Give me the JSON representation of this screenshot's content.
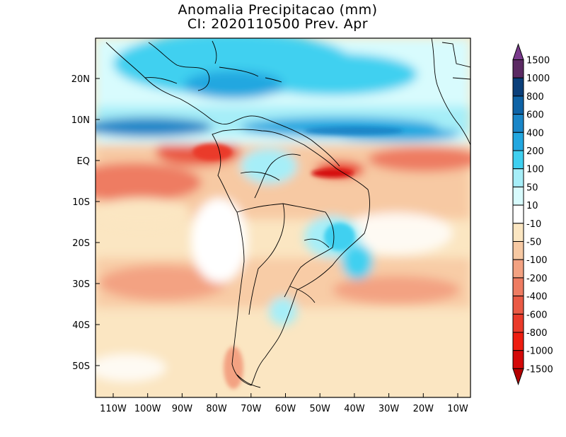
{
  "title": "Anomalia Precipitacao (mm)",
  "subtitle": "CI: 2020110500 Prev. Apr",
  "axes": {
    "lat_labels": [
      "20N",
      "10N",
      "EQ",
      "10S",
      "20S",
      "30S",
      "40S",
      "50S"
    ],
    "lon_labels": [
      "110W",
      "100W",
      "90W",
      "80W",
      "70W",
      "60W",
      "50W",
      "40W",
      "30W",
      "20W",
      "10W"
    ]
  },
  "colorbar": {
    "levels": [
      "1500",
      "1000",
      "800",
      "600",
      "400",
      "200",
      "100",
      "50",
      "10",
      "-10",
      "-50",
      "-100",
      "-200",
      "-400",
      "-600",
      "-800",
      "-1000",
      "-1500"
    ],
    "colors": [
      "#7a3a8c",
      "#5b2a63",
      "#0a3f7a",
      "#0e63a6",
      "#1a86c8",
      "#22a7e0",
      "#3fd0f0",
      "#a6eef8",
      "#d8fbfd",
      "#ffffff",
      "#fbe6c2",
      "#f7c9a3",
      "#f3a282",
      "#ee7c62",
      "#ea5a45",
      "#ea3a2a",
      "#ee1d10",
      "#d40808",
      "#b40000"
    ]
  }
}
